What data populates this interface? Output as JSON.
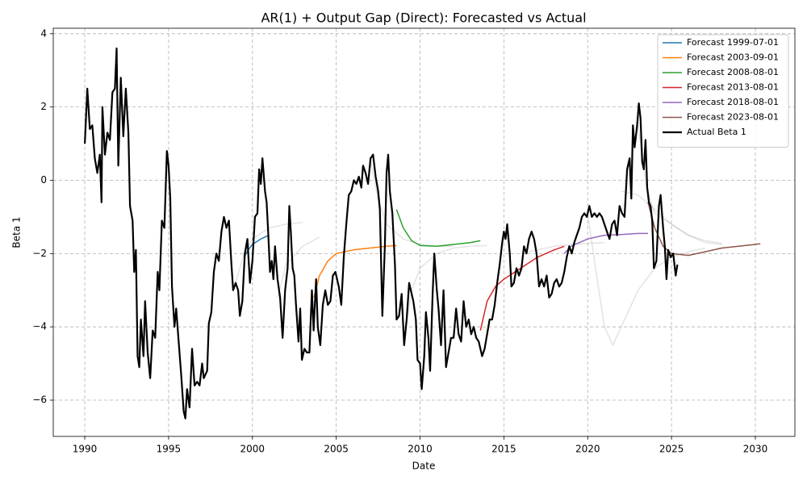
{
  "chart_data": {
    "type": "line",
    "title": "AR(1) + Output Gap (Direct): Forecasted vs Actual",
    "x_label": "Date",
    "y_label": "Beta 1",
    "xlim": [
      1988.12,
      2032.36
    ],
    "ylim": [
      -6.99,
      4.15
    ],
    "xticks": [
      1990,
      1995,
      2000,
      2005,
      2010,
      2015,
      2020,
      2025,
      2030
    ],
    "yticks": [
      {
        "value": -6,
        "label": "−6"
      },
      {
        "value": -4,
        "label": "−4"
      },
      {
        "value": -2,
        "label": "−2"
      },
      0,
      2,
      4
    ],
    "grid": true,
    "legend": "upper right",
    "series": [
      {
        "color": "#808080",
        "opacity": 0.22,
        "width": 1.5,
        "x": [
          1999,
          1999.5,
          2000,
          2001,
          2002,
          2003
        ],
        "values": [
          -2.8,
          -2.0,
          -1.6,
          -1.3,
          -1.2,
          -1.15
        ]
      },
      {
        "color": "#808080",
        "opacity": 0.22,
        "width": 1.5,
        "x": [
          2001.5,
          2002,
          2003,
          2004
        ],
        "values": [
          -3.2,
          -2.3,
          -1.8,
          -1.55
        ]
      },
      {
        "color": "#808080",
        "opacity": 0.22,
        "width": 1.5,
        "x": [
          2009,
          2009.5,
          2010,
          2011,
          2012,
          2013,
          2014
        ],
        "values": [
          -4.5,
          -3.0,
          -2.4,
          -2.0,
          -1.85,
          -1.8,
          -1.78
        ]
      },
      {
        "color": "#808080",
        "opacity": 0.22,
        "width": 1.5,
        "x": [
          2007,
          2007.5,
          2008,
          2009,
          2010,
          2011,
          2012
        ],
        "values": [
          0.6,
          -0.5,
          -1.2,
          -1.6,
          -1.75,
          -1.8,
          -1.8
        ]
      },
      {
        "color": "#808080",
        "opacity": 0.22,
        "width": 1.5,
        "x": [
          2020,
          2020.5,
          2021,
          2021.5,
          2022,
          2023,
          2024,
          2025,
          2026,
          2027
        ],
        "values": [
          -0.9,
          -2.5,
          -4.0,
          -4.5,
          -4.0,
          -3.0,
          -2.4,
          -2.1,
          -1.95,
          -1.85
        ]
      },
      {
        "color": "#808080",
        "opacity": 0.22,
        "width": 1.5,
        "x": [
          2023,
          2023.5,
          2024,
          2025,
          2026,
          2027,
          2028
        ],
        "values": [
          1.5,
          -0.2,
          -0.9,
          -1.2,
          -1.5,
          -1.7,
          -1.75
        ]
      },
      {
        "color": "#808080",
        "opacity": 0.22,
        "width": 1.5,
        "x": [
          2016,
          2017,
          2018,
          2019,
          2020,
          2021
        ],
        "values": [
          -2.0,
          -1.9,
          -1.8,
          -1.75,
          -1.72,
          -1.7
        ]
      },
      {
        "color": "#808080",
        "opacity": 0.22,
        "width": 1.5,
        "x": [
          2022,
          2023,
          2024,
          2025,
          2026,
          2027,
          2028
        ],
        "values": [
          -0.3,
          -0.4,
          -0.8,
          -1.2,
          -1.5,
          -1.65,
          -1.72
        ]
      },
      {
        "name": "Forecast 1999-07-01",
        "color": "#1f77b4",
        "width": 1.5,
        "x": [
          1999.5,
          1999.75,
          2000,
          2000.5,
          2001
        ],
        "values": [
          -2.1,
          -1.9,
          -1.75,
          -1.6,
          -1.5
        ]
      },
      {
        "name": "Forecast 2003-09-01",
        "color": "#ff7f0e",
        "width": 1.5,
        "x": [
          2003.67,
          2004,
          2004.5,
          2005,
          2006,
          2007,
          2008,
          2008.6
        ],
        "values": [
          -3.2,
          -2.6,
          -2.2,
          -2.0,
          -1.9,
          -1.85,
          -1.8,
          -1.78
        ]
      },
      {
        "name": "Forecast 2008-08-01",
        "color": "#2ca02c",
        "width": 1.5,
        "x": [
          2008.6,
          2009,
          2009.5,
          2010,
          2011,
          2012,
          2013,
          2013.6
        ],
        "values": [
          -0.8,
          -1.3,
          -1.65,
          -1.78,
          -1.8,
          -1.75,
          -1.7,
          -1.65
        ]
      },
      {
        "name": "Forecast 2013-08-01",
        "color": "#d62728",
        "width": 1.5,
        "x": [
          2013.6,
          2014,
          2014.5,
          2015,
          2016,
          2017,
          2018,
          2018.6
        ],
        "values": [
          -4.1,
          -3.3,
          -2.9,
          -2.7,
          -2.4,
          -2.1,
          -1.9,
          -1.8
        ]
      },
      {
        "name": "Forecast 2018-08-01",
        "color": "#9467bd",
        "width": 1.5,
        "x": [
          2018.6,
          2019,
          2020,
          2021,
          2022,
          2023,
          2023.6
        ],
        "values": [
          -2.0,
          -1.8,
          -1.6,
          -1.5,
          -1.48,
          -1.45,
          -1.45
        ]
      },
      {
        "name": "Forecast 2023-08-01",
        "color": "#8c564b",
        "width": 1.5,
        "x": [
          2023.6,
          2024,
          2024.5,
          2025,
          2026,
          2027,
          2028,
          2029,
          2030,
          2030.3
        ],
        "values": [
          -0.6,
          -1.3,
          -1.8,
          -2.0,
          -2.05,
          -1.95,
          -1.85,
          -1.8,
          -1.75,
          -1.73
        ]
      },
      {
        "name": "Actual Beta 1",
        "color": "#000000",
        "width": 2.2,
        "x": [
          1990.0,
          1990.15,
          1990.3,
          1990.45,
          1990.6,
          1990.75,
          1990.9,
          1991.0,
          1991.05,
          1991.2,
          1991.35,
          1991.5,
          1991.65,
          1991.8,
          1991.9,
          1992.0,
          1992.15,
          1992.3,
          1992.45,
          1992.6,
          1992.7,
          1992.85,
          1992.95,
          1993.05,
          1993.15,
          1993.25,
          1993.35,
          1993.5,
          1993.6,
          1993.75,
          1993.9,
          1994.05,
          1994.2,
          1994.35,
          1994.45,
          1994.6,
          1994.75,
          1994.9,
          1995.0,
          1995.1,
          1995.2,
          1995.35,
          1995.45,
          1995.6,
          1995.75,
          1995.9,
          1996.0,
          1996.1,
          1996.25,
          1996.4,
          1996.55,
          1996.7,
          1996.85,
          1997.0,
          1997.1,
          1997.3,
          1997.4,
          1997.55,
          1997.7,
          1997.85,
          1998.0,
          1998.15,
          1998.3,
          1998.45,
          1998.6,
          1998.75,
          1998.85,
          1999.0,
          1999.15,
          1999.25,
          1999.4,
          1999.55,
          1999.7,
          1999.85,
          2000.0,
          2000.15,
          2000.3,
          2000.4,
          2000.5,
          2000.6,
          2000.75,
          2000.85,
          2000.95,
          2001.05,
          2001.15,
          2001.25,
          2001.35,
          2001.5,
          2001.65,
          2001.8,
          2001.95,
          2002.1,
          2002.2,
          2002.3,
          2002.4,
          2002.5,
          2002.6,
          2002.75,
          2002.85,
          2002.95,
          2003.1,
          2003.25,
          2003.4,
          2003.55,
          2003.65,
          2003.8,
          2003.9,
          2004.05,
          2004.2,
          2004.35,
          2004.5,
          2004.65,
          2004.8,
          2004.95,
          2005.15,
          2005.3,
          2005.45,
          2005.6,
          2005.75,
          2005.9,
          2006.05,
          2006.2,
          2006.35,
          2006.5,
          2006.6,
          2006.75,
          2006.9,
          2007.05,
          2007.2,
          2007.35,
          2007.5,
          2007.6,
          2007.75,
          2007.9,
          2008.0,
          2008.1,
          2008.2,
          2008.35,
          2008.5,
          2008.6,
          2008.75,
          2008.9,
          2009.05,
          2009.2,
          2009.35,
          2009.5,
          2009.6,
          2009.75,
          2009.85,
          2010.0,
          2010.1,
          2010.25,
          2010.35,
          2010.5,
          2010.6,
          2010.75,
          2010.85,
          2011.0,
          2011.1,
          2011.25,
          2011.4,
          2011.55,
          2011.7,
          2011.85,
          2012.0,
          2012.15,
          2012.3,
          2012.45,
          2012.6,
          2012.75,
          2012.9,
          2013.05,
          2013.2,
          2013.35,
          2013.5,
          2013.7,
          2013.85,
          2014.0,
          2014.15,
          2014.3,
          2014.45,
          2014.6,
          2014.75,
          2014.9,
          2015.0,
          2015.1,
          2015.2,
          2015.35,
          2015.45,
          2015.6,
          2015.75,
          2015.9,
          2016.05,
          2016.2,
          2016.35,
          2016.5,
          2016.65,
          2016.8,
          2016.95,
          2017.1,
          2017.25,
          2017.4,
          2017.55,
          2017.7,
          2017.85,
          2018.0,
          2018.15,
          2018.3,
          2018.45,
          2018.6,
          2018.75,
          2018.9,
          2019.05,
          2019.2,
          2019.35,
          2019.5,
          2019.65,
          2019.8,
          2019.95,
          2020.1,
          2020.25,
          2020.4,
          2020.55,
          2020.7,
          2020.85,
          2021.0,
          2021.15,
          2021.3,
          2021.45,
          2021.6,
          2021.75,
          2021.9,
          2022.05,
          2022.2,
          2022.35,
          2022.5,
          2022.6,
          2022.7,
          2022.8,
          2022.95,
          2023.05,
          2023.15,
          2023.25,
          2023.35,
          2023.45,
          2023.55,
          2023.65,
          2023.75,
          2023.85,
          2023.95,
          2024.1,
          2024.25,
          2024.35,
          2024.5,
          2024.6,
          2024.7,
          2024.8,
          2024.95,
          2025.1,
          2025.25,
          2025.35
        ],
        "values": [
          1.0,
          2.5,
          1.4,
          1.5,
          0.6,
          0.2,
          0.7,
          -0.6,
          2.0,
          0.7,
          1.3,
          1.1,
          2.4,
          2.5,
          3.6,
          0.4,
          2.8,
          1.2,
          2.5,
          1.3,
          -0.7,
          -1.1,
          -2.5,
          -1.9,
          -4.8,
          -5.1,
          -3.8,
          -4.8,
          -3.3,
          -4.7,
          -5.4,
          -4.1,
          -4.3,
          -2.5,
          -3.0,
          -1.1,
          -1.3,
          0.8,
          0.4,
          -0.5,
          -2.9,
          -4.0,
          -3.5,
          -4.4,
          -5.3,
          -6.3,
          -6.5,
          -5.7,
          -6.2,
          -4.6,
          -5.6,
          -5.5,
          -5.6,
          -5.0,
          -5.4,
          -5.2,
          -3.9,
          -3.6,
          -2.5,
          -2.0,
          -2.2,
          -1.4,
          -1.0,
          -1.3,
          -1.1,
          -2.3,
          -3.0,
          -2.8,
          -3.0,
          -3.7,
          -3.3,
          -2.0,
          -1.6,
          -2.8,
          -2.2,
          -1.0,
          -0.9,
          0.3,
          -0.1,
          0.6,
          -0.3,
          -0.6,
          -1.5,
          -2.5,
          -2.2,
          -2.7,
          -1.8,
          -2.7,
          -3.2,
          -4.3,
          -3.0,
          -2.4,
          -0.7,
          -1.5,
          -2.4,
          -2.6,
          -3.4,
          -4.4,
          -3.5,
          -4.9,
          -4.6,
          -4.7,
          -4.7,
          -3.0,
          -4.1,
          -2.7,
          -4.0,
          -4.5,
          -3.4,
          -3.0,
          -3.4,
          -3.3,
          -2.6,
          -2.5,
          -2.9,
          -3.4,
          -2.1,
          -1.2,
          -0.4,
          -0.3,
          0.0,
          -0.1,
          0.1,
          -0.2,
          0.4,
          0.2,
          -0.1,
          0.6,
          0.7,
          0.1,
          -0.3,
          -0.8,
          -3.7,
          -1.8,
          0.2,
          0.7,
          -0.3,
          -0.9,
          -2.3,
          -3.8,
          -3.7,
          -3.1,
          -4.5,
          -3.8,
          -2.8,
          -3.1,
          -3.3,
          -3.8,
          -4.9,
          -5.0,
          -5.7,
          -4.8,
          -3.6,
          -4.3,
          -5.2,
          -3.1,
          -2.0,
          -3.0,
          -3.5,
          -4.5,
          -3.0,
          -5.1,
          -4.7,
          -4.3,
          -4.3,
          -3.5,
          -4.2,
          -4.4,
          -3.3,
          -4.0,
          -3.8,
          -4.2,
          -4.0,
          -4.3,
          -4.4,
          -4.8,
          -4.6,
          -4.2,
          -3.8,
          -3.8,
          -3.4,
          -2.8,
          -2.3,
          -1.7,
          -1.4,
          -1.6,
          -1.2,
          -2.0,
          -2.9,
          -2.8,
          -2.4,
          -2.6,
          -2.4,
          -1.8,
          -2.0,
          -1.6,
          -1.4,
          -1.6,
          -2.0,
          -2.9,
          -2.7,
          -2.9,
          -2.6,
          -3.2,
          -3.1,
          -2.8,
          -2.7,
          -2.9,
          -2.8,
          -2.5,
          -2.1,
          -1.8,
          -2.0,
          -1.7,
          -1.5,
          -1.3,
          -1.0,
          -0.9,
          -1.0,
          -0.7,
          -1.0,
          -0.9,
          -1.0,
          -0.9,
          -1.0,
          -1.2,
          -1.4,
          -1.6,
          -1.2,
          -1.1,
          -1.5,
          -0.7,
          -0.9,
          -1.0,
          0.3,
          0.6,
          -0.5,
          1.5,
          0.9,
          1.5,
          2.1,
          1.7,
          0.5,
          0.3,
          1.1,
          -0.2,
          -0.6,
          -0.7,
          -1.1,
          -2.4,
          -2.2,
          -0.7,
          -0.4,
          -1.3,
          -1.8,
          -2.7,
          -1.9,
          -2.1,
          -2.0,
          -2.6,
          -2.3
        ]
      }
    ]
  }
}
